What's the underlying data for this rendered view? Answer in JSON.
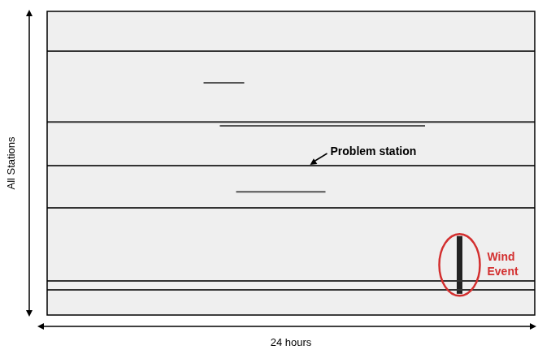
{
  "chart_data": {
    "type": "line",
    "x_label": "24 hours",
    "y_label": "All Stations",
    "xlim": [
      0,
      24
    ],
    "ylim": [
      0,
      100
    ],
    "tick_labels": false,
    "grid": false,
    "series": [
      {
        "x": [
          0,
          24
        ],
        "values": [
          86.9,
          86.9
        ],
        "color": "#333333"
      },
      {
        "x": [
          0,
          24
        ],
        "values": [
          63.6,
          63.6
        ],
        "color": "#333333"
      },
      {
        "x": [
          0,
          24
        ],
        "values": [
          49.2,
          49.2
        ],
        "color": "#333333"
      },
      {
        "x": [
          0,
          24
        ],
        "values": [
          35.3,
          35.3
        ],
        "color": "#333333"
      },
      {
        "x": [
          0,
          24
        ],
        "values": [
          11.2,
          11.2
        ],
        "color": "#333333"
      },
      {
        "x": [
          0,
          24
        ],
        "values": [
          8.3,
          8.3
        ],
        "color": "#333333"
      },
      {
        "x": [
          8.5,
          18.6
        ],
        "values": [
          62.3,
          62.3
        ],
        "color": "#555555"
      },
      {
        "x": [
          9.3,
          13.7
        ],
        "values": [
          40.6,
          40.6
        ],
        "color": "#555555"
      },
      {
        "x": [
          7.7,
          9.7
        ],
        "values": [
          76.5,
          76.5
        ],
        "color": "#555555"
      },
      {
        "x": [
          20.3,
          20.3
        ],
        "values": [
          7,
          26
        ],
        "color": "#222222"
      }
    ],
    "annotations": [
      {
        "text": "Problem station",
        "x": 12.9,
        "y": 49.2,
        "color": "#000000"
      },
      {
        "text": "Wind Event",
        "x": 20.3,
        "y": 16.5,
        "color": "#d32f2f"
      }
    ]
  }
}
